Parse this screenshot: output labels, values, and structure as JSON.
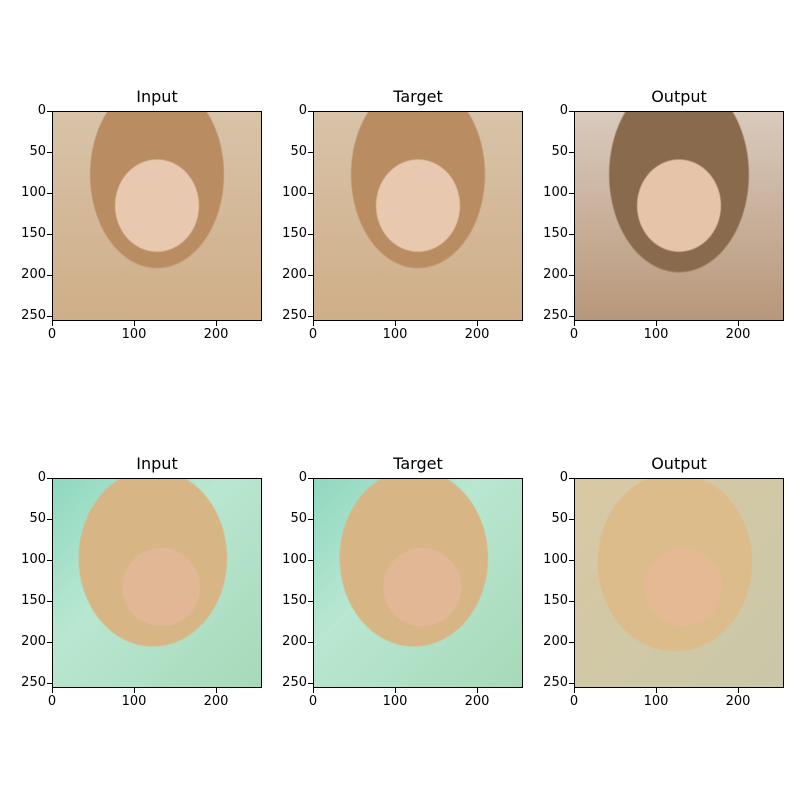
{
  "rows": [
    {
      "panels": [
        {
          "title": "Input",
          "image": "face-portrait-brunette-input"
        },
        {
          "title": "Target",
          "image": "face-portrait-brunette-target"
        },
        {
          "title": "Output",
          "image": "face-portrait-brunette-output"
        }
      ]
    },
    {
      "panels": [
        {
          "title": "Input",
          "image": "face-portrait-blonde-input"
        },
        {
          "title": "Target",
          "image": "face-portrait-blonde-target"
        },
        {
          "title": "Output",
          "image": "face-portrait-blonde-output"
        }
      ]
    }
  ],
  "axis": {
    "y_ticks": [
      "0",
      "50",
      "100",
      "150",
      "200",
      "250"
    ],
    "x_ticks": [
      "0",
      "100",
      "200"
    ]
  }
}
